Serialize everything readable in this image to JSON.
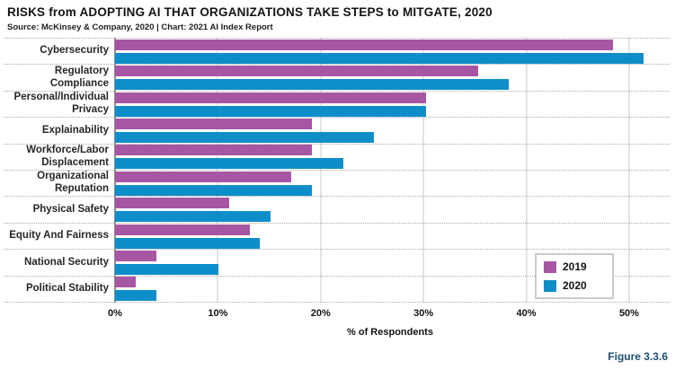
{
  "header": {
    "title": "RISKS from ADOPTING AI THAT ORGANIZATIONS TAKE STEPS to MITGATE, 2020",
    "source": "Source: McKinsey & Company, 2020 | Chart: 2021 AI Index Report"
  },
  "chart_data": {
    "type": "bar",
    "orientation": "horizontal",
    "title": "RISKS from ADOPTING AI THAT ORGANIZATIONS TAKE STEPS to MITGATE, 2020",
    "categories": [
      "Cybersecurity",
      "Regulatory\nCompliance",
      "Personal/Individual\nPrivacy",
      "Explainability",
      "Workforce/Labor\nDisplacement",
      "Organizational\nReputation",
      "Physical Safety",
      "Equity And Fairness",
      "National Security",
      "Political Stability"
    ],
    "series": [
      {
        "name": "2019",
        "color": "#a756a3",
        "values": [
          48,
          35,
          30,
          19,
          19,
          17,
          11,
          13,
          4,
          2
        ]
      },
      {
        "name": "2020",
        "color": "#0e8ec9",
        "values": [
          51,
          38,
          30,
          25,
          22,
          19,
          15,
          14,
          10,
          4
        ]
      }
    ],
    "xlabel": "% of Respondents",
    "x_ticks": [
      0,
      10,
      20,
      30,
      40,
      50
    ],
    "x_tick_labels": [
      "0%",
      "10%",
      "20%",
      "30%",
      "40%",
      "50%"
    ],
    "xlim": [
      0,
      53.5
    ],
    "grid": "vertical-solid, horizontal-dotted-row-separators",
    "legend_position": "inside-right-bottom"
  },
  "figure_label": "Figure 3.3.6"
}
